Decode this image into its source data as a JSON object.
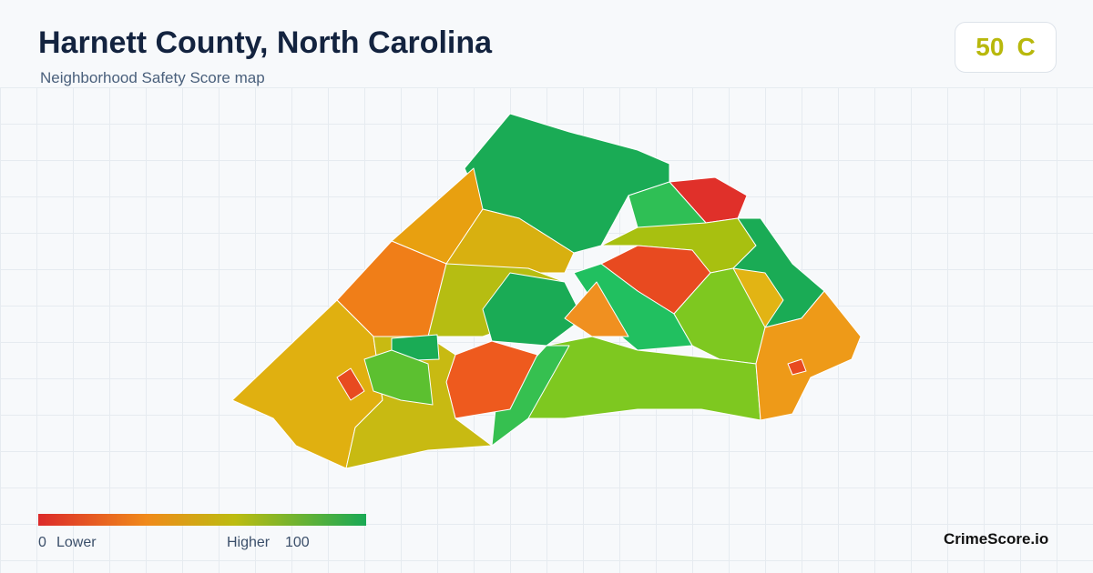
{
  "header": {
    "title": "Harnett County, North Carolina",
    "subtitle": "Neighborhood Safety Score map"
  },
  "score": {
    "value": 50,
    "grade": "C"
  },
  "legend": {
    "min": 0,
    "min_label": "Lower",
    "max_label": "Higher",
    "max": 100
  },
  "brand": "CrimeScore.io"
}
